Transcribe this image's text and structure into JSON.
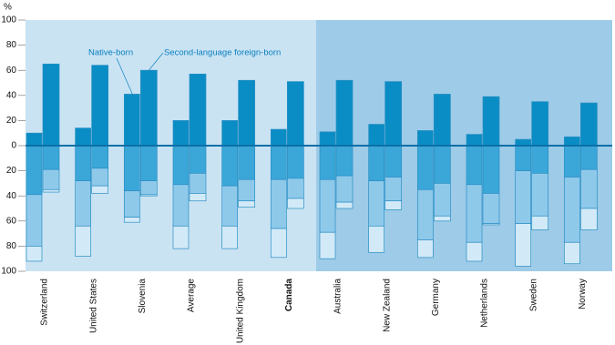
{
  "chart_data": {
    "type": "diverging-stacked-bar",
    "y_label": "%",
    "categories": [
      "Switzerland",
      "United States",
      "Slovenia",
      "Average",
      "United Kingdom",
      "Canada",
      "Australia",
      "New Zealand",
      "Germany",
      "Netherlands",
      "Sweden",
      "Norway"
    ],
    "groups": [
      {
        "name": "Native-born",
        "segments": [
          {
            "color": "#0a8dc4",
            "values": [
              10,
              14,
              41,
              20,
              20,
              13,
              11,
              17,
              12,
              9,
              5,
              7
            ]
          },
          {
            "color": "#3aa7d8",
            "values": [
              -39,
              -28,
              -36,
              -31,
              -32,
              -27,
              -27,
              -28,
              -35,
              -31,
              -20,
              -25
            ]
          },
          {
            "color": "#8fc9ea",
            "values": [
              -41,
              -36,
              -21,
              -33,
              -32,
              -39,
              -42,
              -36,
              -40,
              -46,
              -42,
              -52
            ]
          },
          {
            "color": "#d2eaf7",
            "values": [
              -12,
              -24,
              -4,
              -18,
              -18,
              -23,
              -21,
              -21,
              -14,
              -15,
              -34,
              -17
            ]
          }
        ]
      },
      {
        "name": "Second-language foreign-born",
        "segments": [
          {
            "color": "#0a8dc4",
            "values": [
              65,
              64,
              60,
              57,
              52,
              51,
              52,
              51,
              41,
              39,
              35,
              34
            ]
          },
          {
            "color": "#3aa7d8",
            "values": [
              -19,
              -18,
              -28,
              -22,
              -27,
              -26,
              -24,
              -25,
              -30,
              -38,
              -22,
              -19
            ]
          },
          {
            "color": "#8fc9ea",
            "values": [
              -16,
              -14,
              -11,
              -16,
              -17,
              -16,
              -21,
              -19,
              -26,
              -24,
              -34,
              -31
            ]
          },
          {
            "color": "#d2eaf7",
            "values": [
              -2,
              -6,
              -1,
              -6,
              -5,
              -8,
              -5,
              -7,
              -4,
              -1,
              -11,
              -17
            ]
          }
        ]
      }
    ],
    "ylim": [
      -100,
      100
    ],
    "yticks": [
      {
        "value": -100,
        "label": "100"
      },
      {
        "value": -80,
        "label": "80"
      },
      {
        "value": -60,
        "label": "60"
      },
      {
        "value": -40,
        "label": "40"
      },
      {
        "value": -20,
        "label": "20"
      },
      0,
      20,
      40,
      60,
      80,
      100
    ]
  }
}
